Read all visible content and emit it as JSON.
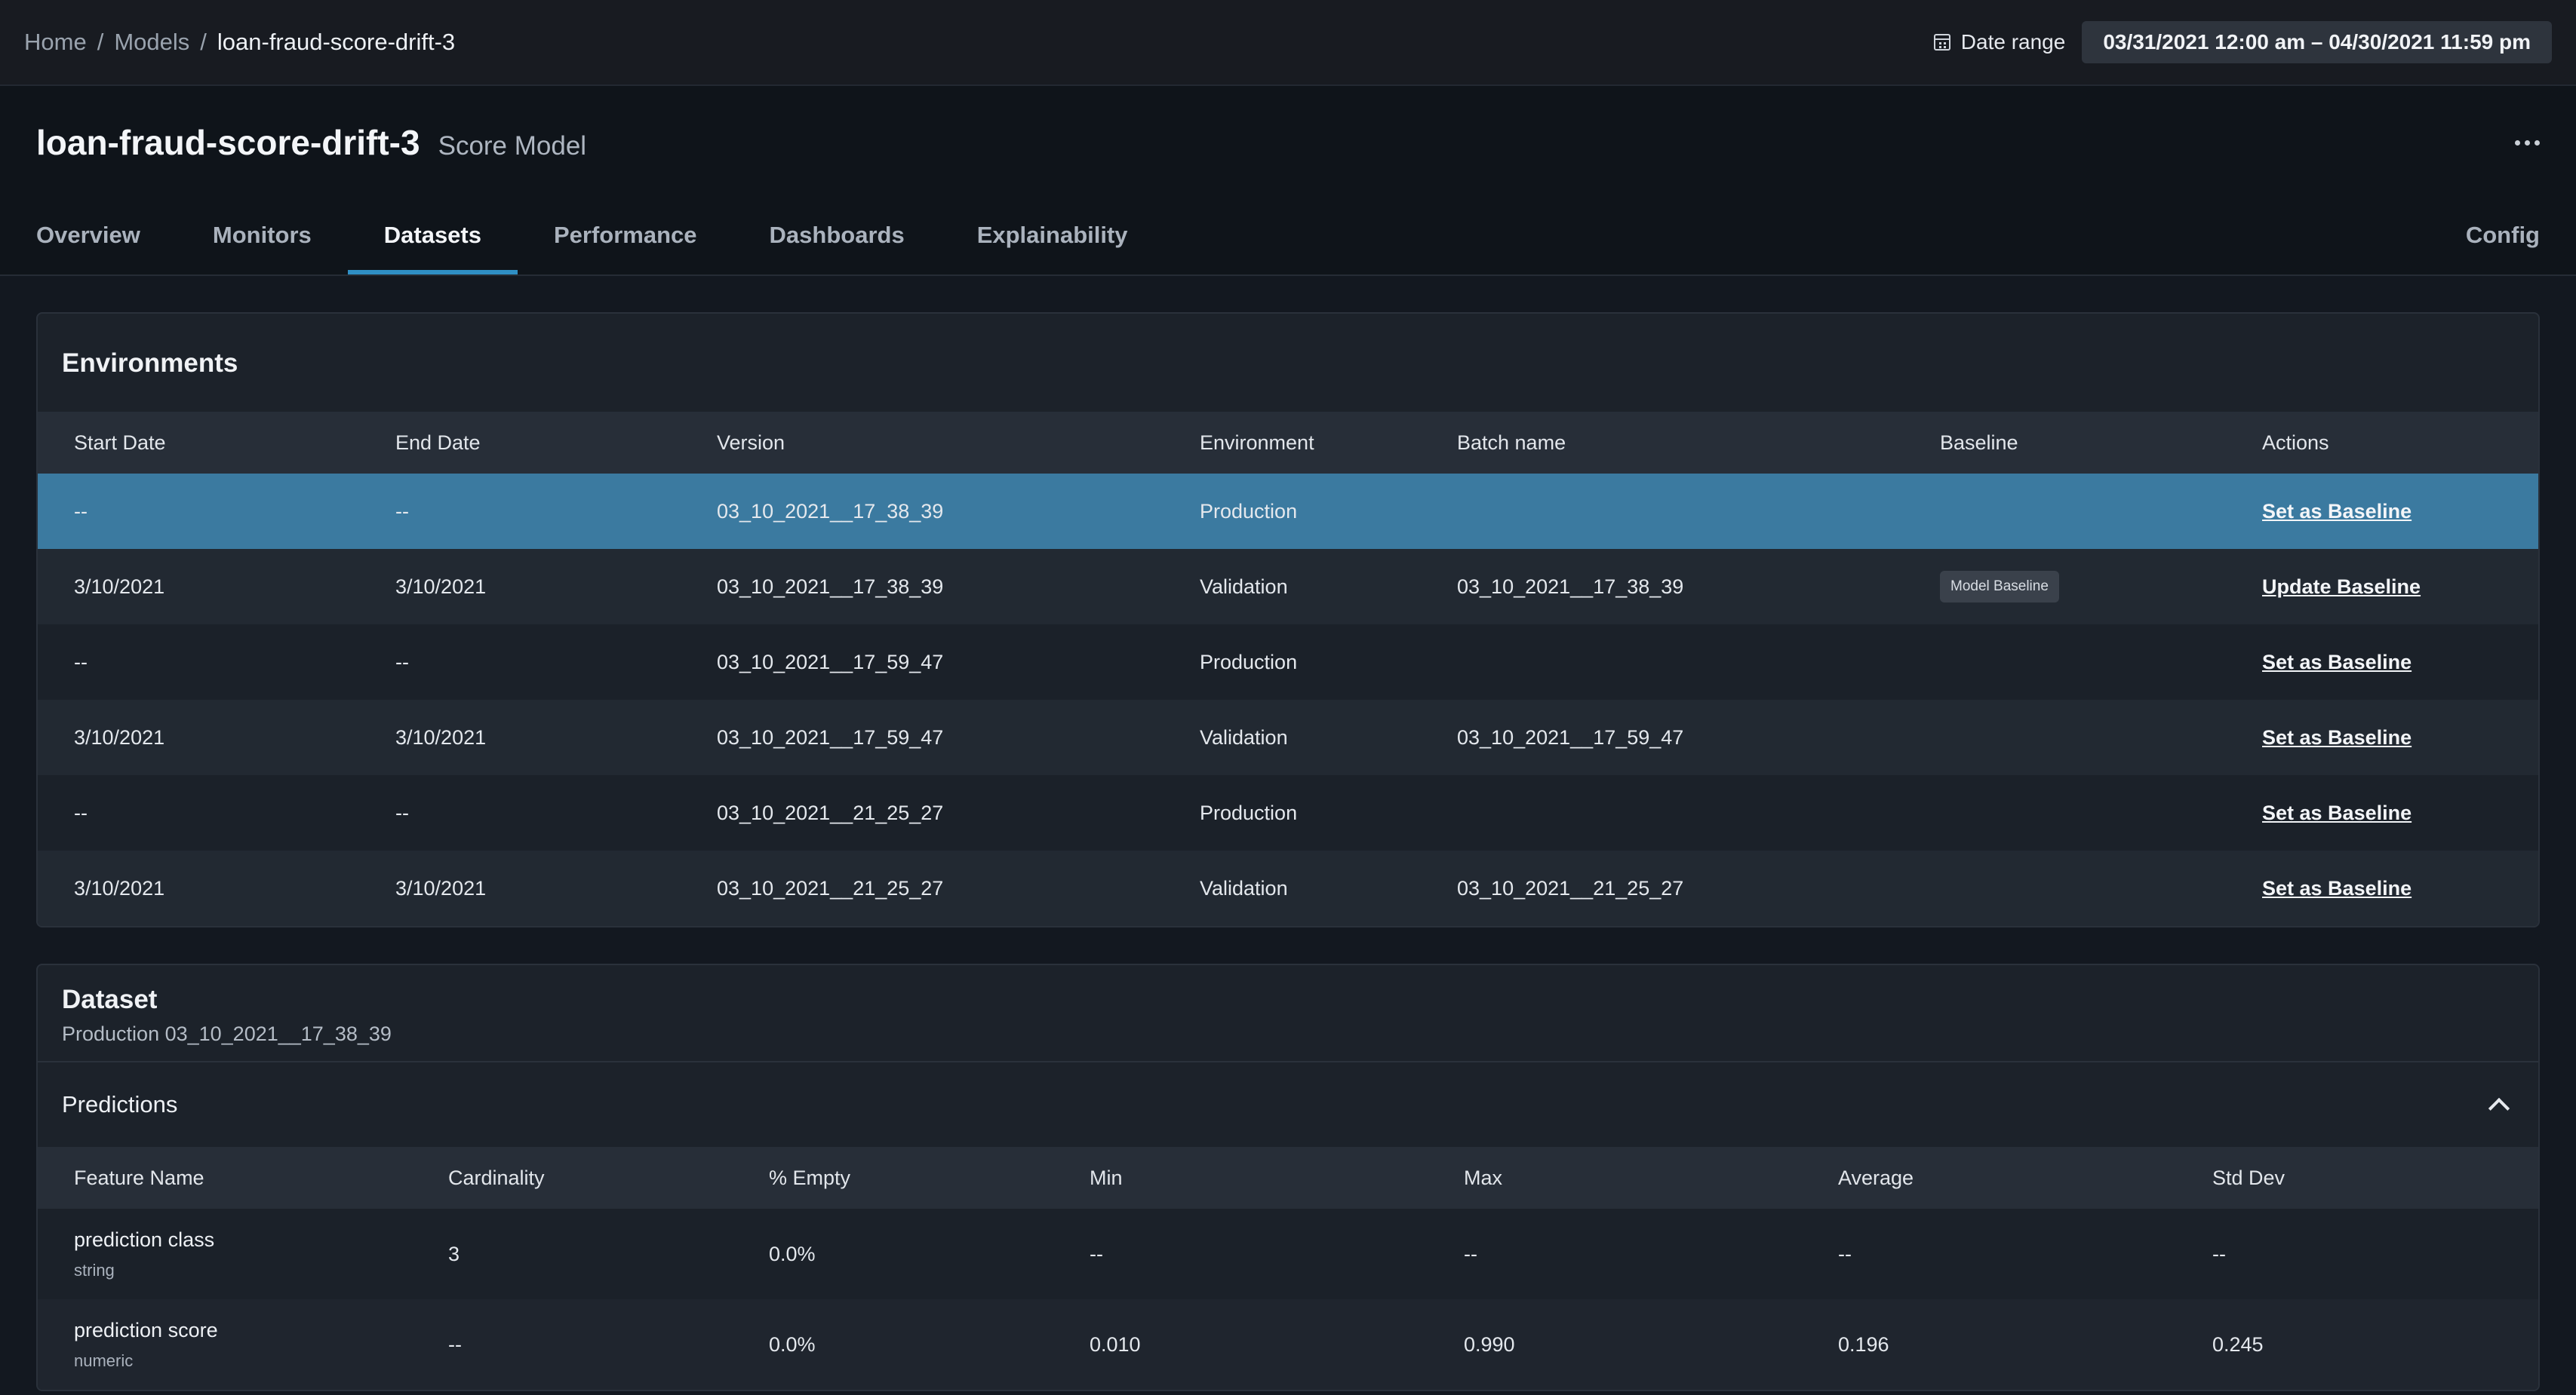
{
  "breadcrumb": {
    "home": "Home",
    "models": "Models",
    "current": "loan-fraud-score-drift-3",
    "sep": "/"
  },
  "date_range": {
    "label": "Date range",
    "value": "03/31/2021 12:00 am – 04/30/2021 11:59 pm"
  },
  "model": {
    "title": "loan-fraud-score-drift-3",
    "type": "Score Model"
  },
  "tabs": [
    {
      "label": "Overview",
      "active": false
    },
    {
      "label": "Monitors",
      "active": false
    },
    {
      "label": "Datasets",
      "active": true
    },
    {
      "label": "Performance",
      "active": false
    },
    {
      "label": "Dashboards",
      "active": false
    },
    {
      "label": "Explainability",
      "active": false
    }
  ],
  "config_tab": "Config",
  "environments": {
    "title": "Environments",
    "columns": [
      "Start Date",
      "End Date",
      "Version",
      "Environment",
      "Batch name",
      "Baseline",
      "Actions"
    ],
    "rows": [
      {
        "start": "--",
        "end": "--",
        "version": "03_10_2021__17_38_39",
        "env": "Production",
        "batch": "",
        "baseline": "",
        "action": "Set as Baseline",
        "selected": true
      },
      {
        "start": "3/10/2021",
        "end": "3/10/2021",
        "version": "03_10_2021__17_38_39",
        "env": "Validation",
        "batch": "03_10_2021__17_38_39",
        "baseline": "Model Baseline",
        "action": "Update Baseline",
        "selected": false
      },
      {
        "start": "--",
        "end": "--",
        "version": "03_10_2021__17_59_47",
        "env": "Production",
        "batch": "",
        "baseline": "",
        "action": "Set as Baseline",
        "selected": false
      },
      {
        "start": "3/10/2021",
        "end": "3/10/2021",
        "version": "03_10_2021__17_59_47",
        "env": "Validation",
        "batch": "03_10_2021__17_59_47",
        "baseline": "",
        "action": "Set as Baseline",
        "selected": false
      },
      {
        "start": "--",
        "end": "--",
        "version": "03_10_2021__21_25_27",
        "env": "Production",
        "batch": "",
        "baseline": "",
        "action": "Set as Baseline",
        "selected": false
      },
      {
        "start": "3/10/2021",
        "end": "3/10/2021",
        "version": "03_10_2021__21_25_27",
        "env": "Validation",
        "batch": "03_10_2021__21_25_27",
        "baseline": "",
        "action": "Set as Baseline",
        "selected": false
      }
    ]
  },
  "dataset": {
    "title": "Dataset",
    "subtitle": "Production 03_10_2021__17_38_39",
    "predictions": {
      "title": "Predictions",
      "columns": [
        "Feature Name",
        "Cardinality",
        "% Empty",
        "Min",
        "Max",
        "Average",
        "Std Dev"
      ],
      "rows": [
        {
          "name": "prediction class",
          "type": "string",
          "cardinality": "3",
          "empty": "0.0%",
          "min": "--",
          "max": "--",
          "avg": "--",
          "std": "--"
        },
        {
          "name": "prediction score",
          "type": "numeric",
          "cardinality": "--",
          "empty": "0.0%",
          "min": "0.010",
          "max": "0.990",
          "avg": "0.196",
          "std": "0.245"
        }
      ]
    }
  },
  "colors": {
    "accent": "#2f8fc5",
    "selected_row": "#3b7aa0",
    "background": "#131820"
  }
}
